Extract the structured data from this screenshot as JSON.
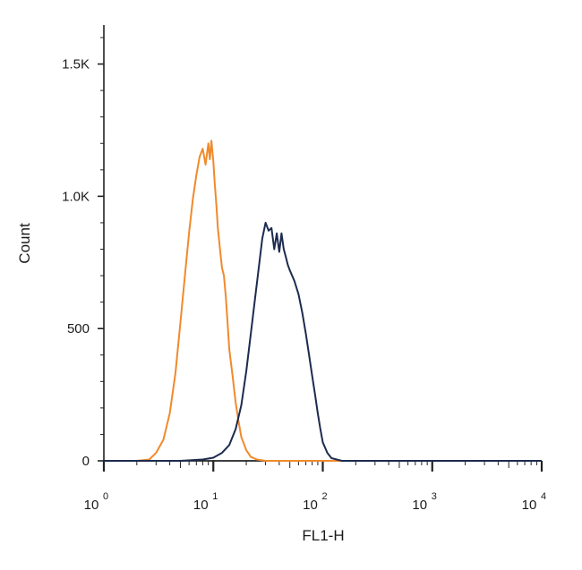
{
  "chart_data": {
    "type": "line",
    "title": "",
    "xlabel": "FL1-H",
    "ylabel": "Count",
    "x_scale": "log",
    "xlim": [
      1,
      10000
    ],
    "ylim": [
      0,
      1600
    ],
    "grid": false,
    "legend": "none",
    "x_ticks": [
      {
        "value": 1,
        "base": "10",
        "exp": "0"
      },
      {
        "value": 10,
        "base": "10",
        "exp": "1"
      },
      {
        "value": 100,
        "base": "10",
        "exp": "2"
      },
      {
        "value": 1000,
        "base": "10",
        "exp": "3"
      },
      {
        "value": 10000,
        "base": "10",
        "exp": "4"
      }
    ],
    "y_ticks": [
      {
        "value": 0,
        "label": "0"
      },
      {
        "value": 500,
        "label": "500"
      },
      {
        "value": 1000,
        "label": "1.0K"
      },
      {
        "value": 1500,
        "label": "1.5K"
      }
    ],
    "series": [
      {
        "color": "#f08a2c",
        "x": [
          1,
          2,
          2.6,
          3,
          3.5,
          4,
          4.5,
          5,
          5.5,
          6,
          6.5,
          7,
          7.5,
          8,
          8.5,
          9,
          9.3,
          9.6,
          10,
          10.3,
          10.7,
          11,
          11.5,
          12,
          12.5,
          13,
          13.5,
          14,
          15,
          16,
          17,
          18,
          20,
          22,
          25,
          30,
          50,
          100,
          1000,
          10000
        ],
        "y": [
          0,
          0,
          5,
          30,
          80,
          180,
          330,
          520,
          700,
          860,
          990,
          1080,
          1150,
          1180,
          1120,
          1200,
          1140,
          1210,
          1130,
          1050,
          960,
          880,
          800,
          730,
          700,
          620,
          520,
          420,
          320,
          220,
          150,
          90,
          40,
          15,
          5,
          0,
          0,
          0,
          0,
          0
        ]
      },
      {
        "color": "#1d2b4f",
        "x": [
          1,
          5,
          8,
          10,
          12,
          14,
          16,
          18,
          20,
          22,
          24,
          26,
          28,
          30,
          32,
          34,
          36,
          38,
          40,
          42,
          44,
          46,
          48,
          50,
          55,
          60,
          65,
          70,
          75,
          80,
          85,
          90,
          95,
          100,
          110,
          120,
          150,
          1000,
          10000
        ],
        "y": [
          0,
          0,
          5,
          12,
          30,
          60,
          120,
          210,
          340,
          480,
          610,
          730,
          840,
          900,
          870,
          880,
          800,
          860,
          790,
          860,
          800,
          770,
          740,
          720,
          680,
          630,
          560,
          480,
          400,
          320,
          250,
          180,
          120,
          70,
          30,
          10,
          0,
          0,
          0
        ]
      }
    ]
  }
}
